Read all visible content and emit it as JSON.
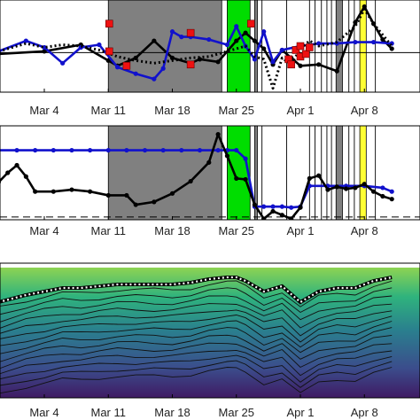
{
  "date_ticks": [
    "Mar 4",
    "Mar 11",
    "Mar 18",
    "Mar 25",
    "Apr 1",
    "Apr 8",
    "A"
  ],
  "chart_data": [
    {
      "type": "line",
      "panel": "top",
      "x_unit": "day index (Mar 4 = 4, Apr 1 = 32)",
      "x_ticks": [
        "Mar 4",
        "Mar 11",
        "Mar 18",
        "Mar 25",
        "Apr 1",
        "Apr 8",
        "A"
      ],
      "shaded_periods": [
        {
          "start": 11.0,
          "end": 23.4,
          "color": "#808080"
        },
        {
          "start": 24.0,
          "end": 26.5,
          "color": "#00dd00"
        },
        {
          "start": 27.0,
          "end": 27.3,
          "color": "#808080"
        },
        {
          "start": 35.9,
          "end": 36.6,
          "color": "#808080"
        },
        {
          "start": 38.5,
          "end": 39.2,
          "color": "#ffff33"
        }
      ],
      "vertical_lines": [
        27.8,
        30.5,
        33.0,
        33.6,
        34.3,
        34.9,
        35.4,
        37.3,
        37.9,
        40.2
      ],
      "reference_line_y": 0,
      "ylim": [
        -3,
        4
      ],
      "grid": false,
      "series": [
        {
          "color": "#000000",
          "style": "solid",
          "marker": "dot",
          "x": [
            -1,
            4,
            8,
            11,
            12,
            14,
            16,
            18,
            20,
            21,
            23,
            25,
            26,
            27,
            28,
            29,
            30,
            31,
            32,
            34,
            36,
            38,
            39,
            40,
            41,
            42
          ],
          "y": [
            -0.1,
            0.1,
            0.6,
            -0.6,
            -1.0,
            -0.4,
            0.9,
            -0.4,
            -0.8,
            -0.5,
            -0.7,
            0.9,
            1.5,
            0.9,
            0.3,
            -0.9,
            0.2,
            -0.4,
            -1.0,
            -0.9,
            -1.4,
            2.3,
            3.5,
            2.2,
            1.0,
            0.3
          ]
        },
        {
          "color": "#1111cc",
          "style": "solid",
          "marker": "dot",
          "x": [
            -1,
            2,
            4,
            6,
            8,
            10,
            12,
            14,
            16,
            17,
            18,
            19,
            20,
            22,
            24,
            25,
            26,
            27,
            28,
            29,
            30,
            32,
            34,
            36,
            38,
            40,
            42
          ],
          "y": [
            0.1,
            0.9,
            0.4,
            -0.8,
            0.4,
            0.6,
            -1.1,
            -1.6,
            -2.0,
            -1.2,
            1.6,
            1.2,
            1.2,
            1.0,
            0.6,
            2.0,
            0.5,
            -0.5,
            1.6,
            -0.7,
            0.2,
            0.5,
            0.7,
            0.7,
            0.8,
            0.8,
            0.7
          ]
        },
        {
          "color": "#000000",
          "style": "dotted",
          "marker": "none",
          "x": [
            -1,
            2,
            4,
            6,
            8,
            10,
            12,
            14,
            16,
            18,
            20,
            22,
            24,
            25,
            26,
            27,
            28,
            29,
            30,
            31,
            32,
            33,
            34,
            36,
            38,
            39,
            40,
            42
          ],
          "y": [
            0.1,
            0.7,
            0.4,
            0.6,
            0.5,
            0.2,
            -0.3,
            -0.6,
            -0.8,
            -0.6,
            -0.4,
            -0.3,
            0.1,
            0.3,
            0.5,
            -0.3,
            -0.5,
            -2.7,
            -0.4,
            -0.9,
            0.3,
            0.9,
            0.5,
            0.8,
            2.0,
            3.3,
            2.2,
            0.5
          ]
        }
      ],
      "markers": {
        "color": "#ee1111",
        "shape": "square",
        "x": [
          11.1,
          11.1,
          13.0,
          20.0,
          20.0,
          26.6,
          30.7,
          31.0,
          31.5,
          32.0,
          32.0,
          32.6,
          33.0
        ],
        "y": [
          2.2,
          0.1,
          -1.0,
          1.5,
          -0.9,
          2.2,
          -0.5,
          -0.9,
          0.2,
          -0.3,
          0.5,
          -0.1,
          0.4
        ]
      }
    },
    {
      "type": "line",
      "panel": "middle",
      "x_unit": "day index (Mar 4 = 4, Apr 1 = 32)",
      "x_ticks": [
        "Mar 4",
        "Mar 11",
        "Mar 18",
        "Mar 25",
        "Apr 1",
        "Apr 8",
        "A"
      ],
      "shaded_periods": [
        {
          "start": 11.0,
          "end": 23.4,
          "color": "#808080"
        },
        {
          "start": 24.0,
          "end": 26.5,
          "color": "#00dd00"
        },
        {
          "start": 27.0,
          "end": 27.3,
          "color": "#808080"
        },
        {
          "start": 35.9,
          "end": 36.6,
          "color": "#808080"
        },
        {
          "start": 38.5,
          "end": 39.2,
          "color": "#ffff33"
        }
      ],
      "vertical_lines": [
        27.8,
        30.5,
        33.0,
        33.6,
        34.3,
        34.9,
        35.4,
        37.3,
        37.9,
        40.2
      ],
      "reference_line_y": 0.3,
      "ylim": [
        0,
        10
      ],
      "grid": false,
      "series": [
        {
          "color": "#1111cc",
          "style": "solid",
          "marker": "dot",
          "x": [
            -1,
            1,
            3,
            5,
            7,
            9,
            11,
            13,
            15,
            17,
            19,
            21,
            23,
            24,
            25,
            26,
            27,
            28,
            29,
            30,
            31,
            32,
            33,
            35,
            37,
            39,
            41,
            42
          ],
          "y": [
            7.4,
            7.4,
            7.4,
            7.4,
            7.4,
            7.4,
            7.4,
            7.4,
            7.4,
            7.4,
            7.4,
            7.4,
            7.4,
            7.4,
            7.4,
            6.5,
            1.4,
            1.4,
            1.4,
            1.4,
            1.3,
            1.4,
            3.6,
            3.6,
            3.6,
            3.6,
            3.4,
            3.0
          ]
        },
        {
          "color": "#000000",
          "style": "solid",
          "marker": "dot",
          "x": [
            -1,
            0,
            1,
            2,
            3,
            5,
            7,
            9,
            11,
            13,
            14,
            16,
            18,
            20,
            22,
            23,
            24,
            25,
            26,
            27,
            28,
            29,
            30,
            31,
            32,
            33,
            34,
            35,
            36,
            37,
            38,
            39,
            40,
            41,
            42
          ],
          "y": [
            4.0,
            5.0,
            5.8,
            4.6,
            3.0,
            3.0,
            3.2,
            3.0,
            2.6,
            2.6,
            1.6,
            1.9,
            2.8,
            4.1,
            6.1,
            9.1,
            6.8,
            4.4,
            4.3,
            1.6,
            0.1,
            0.9,
            0.5,
            0.1,
            1.3,
            4.4,
            4.7,
            3.2,
            3.5,
            3.3,
            3.4,
            3.8,
            3.0,
            2.5,
            2.2
          ]
        }
      ]
    },
    {
      "type": "heatmap",
      "panel": "bottom",
      "x_unit": "day index (Mar 4 = 4, Apr 1 = 32)",
      "x_ticks": [
        "Mar 4",
        "Mar 11",
        "Mar 18",
        "Mar 25",
        "Apr 1",
        "Apr 8",
        "A"
      ],
      "colormap": [
        "#3f1a63",
        "#3b4d8c",
        "#2a7f8e",
        "#2fb37d",
        "#9bd94c",
        "#e8e43a"
      ],
      "surface_line": {
        "style": "dotted-white-on-black",
        "x": [
          -1,
          2,
          4,
          6,
          8,
          10,
          12,
          14,
          16,
          18,
          20,
          22,
          24,
          25,
          26,
          28,
          30,
          32,
          34,
          36,
          38,
          40,
          42
        ],
        "depth": [
          0.9,
          0.7,
          0.6,
          0.5,
          0.5,
          0.45,
          0.4,
          0.4,
          0.4,
          0.4,
          0.35,
          0.25,
          0.2,
          0.2,
          0.3,
          0.6,
          0.45,
          0.9,
          0.6,
          0.5,
          0.5,
          0.3,
          0.2
        ]
      }
    }
  ]
}
